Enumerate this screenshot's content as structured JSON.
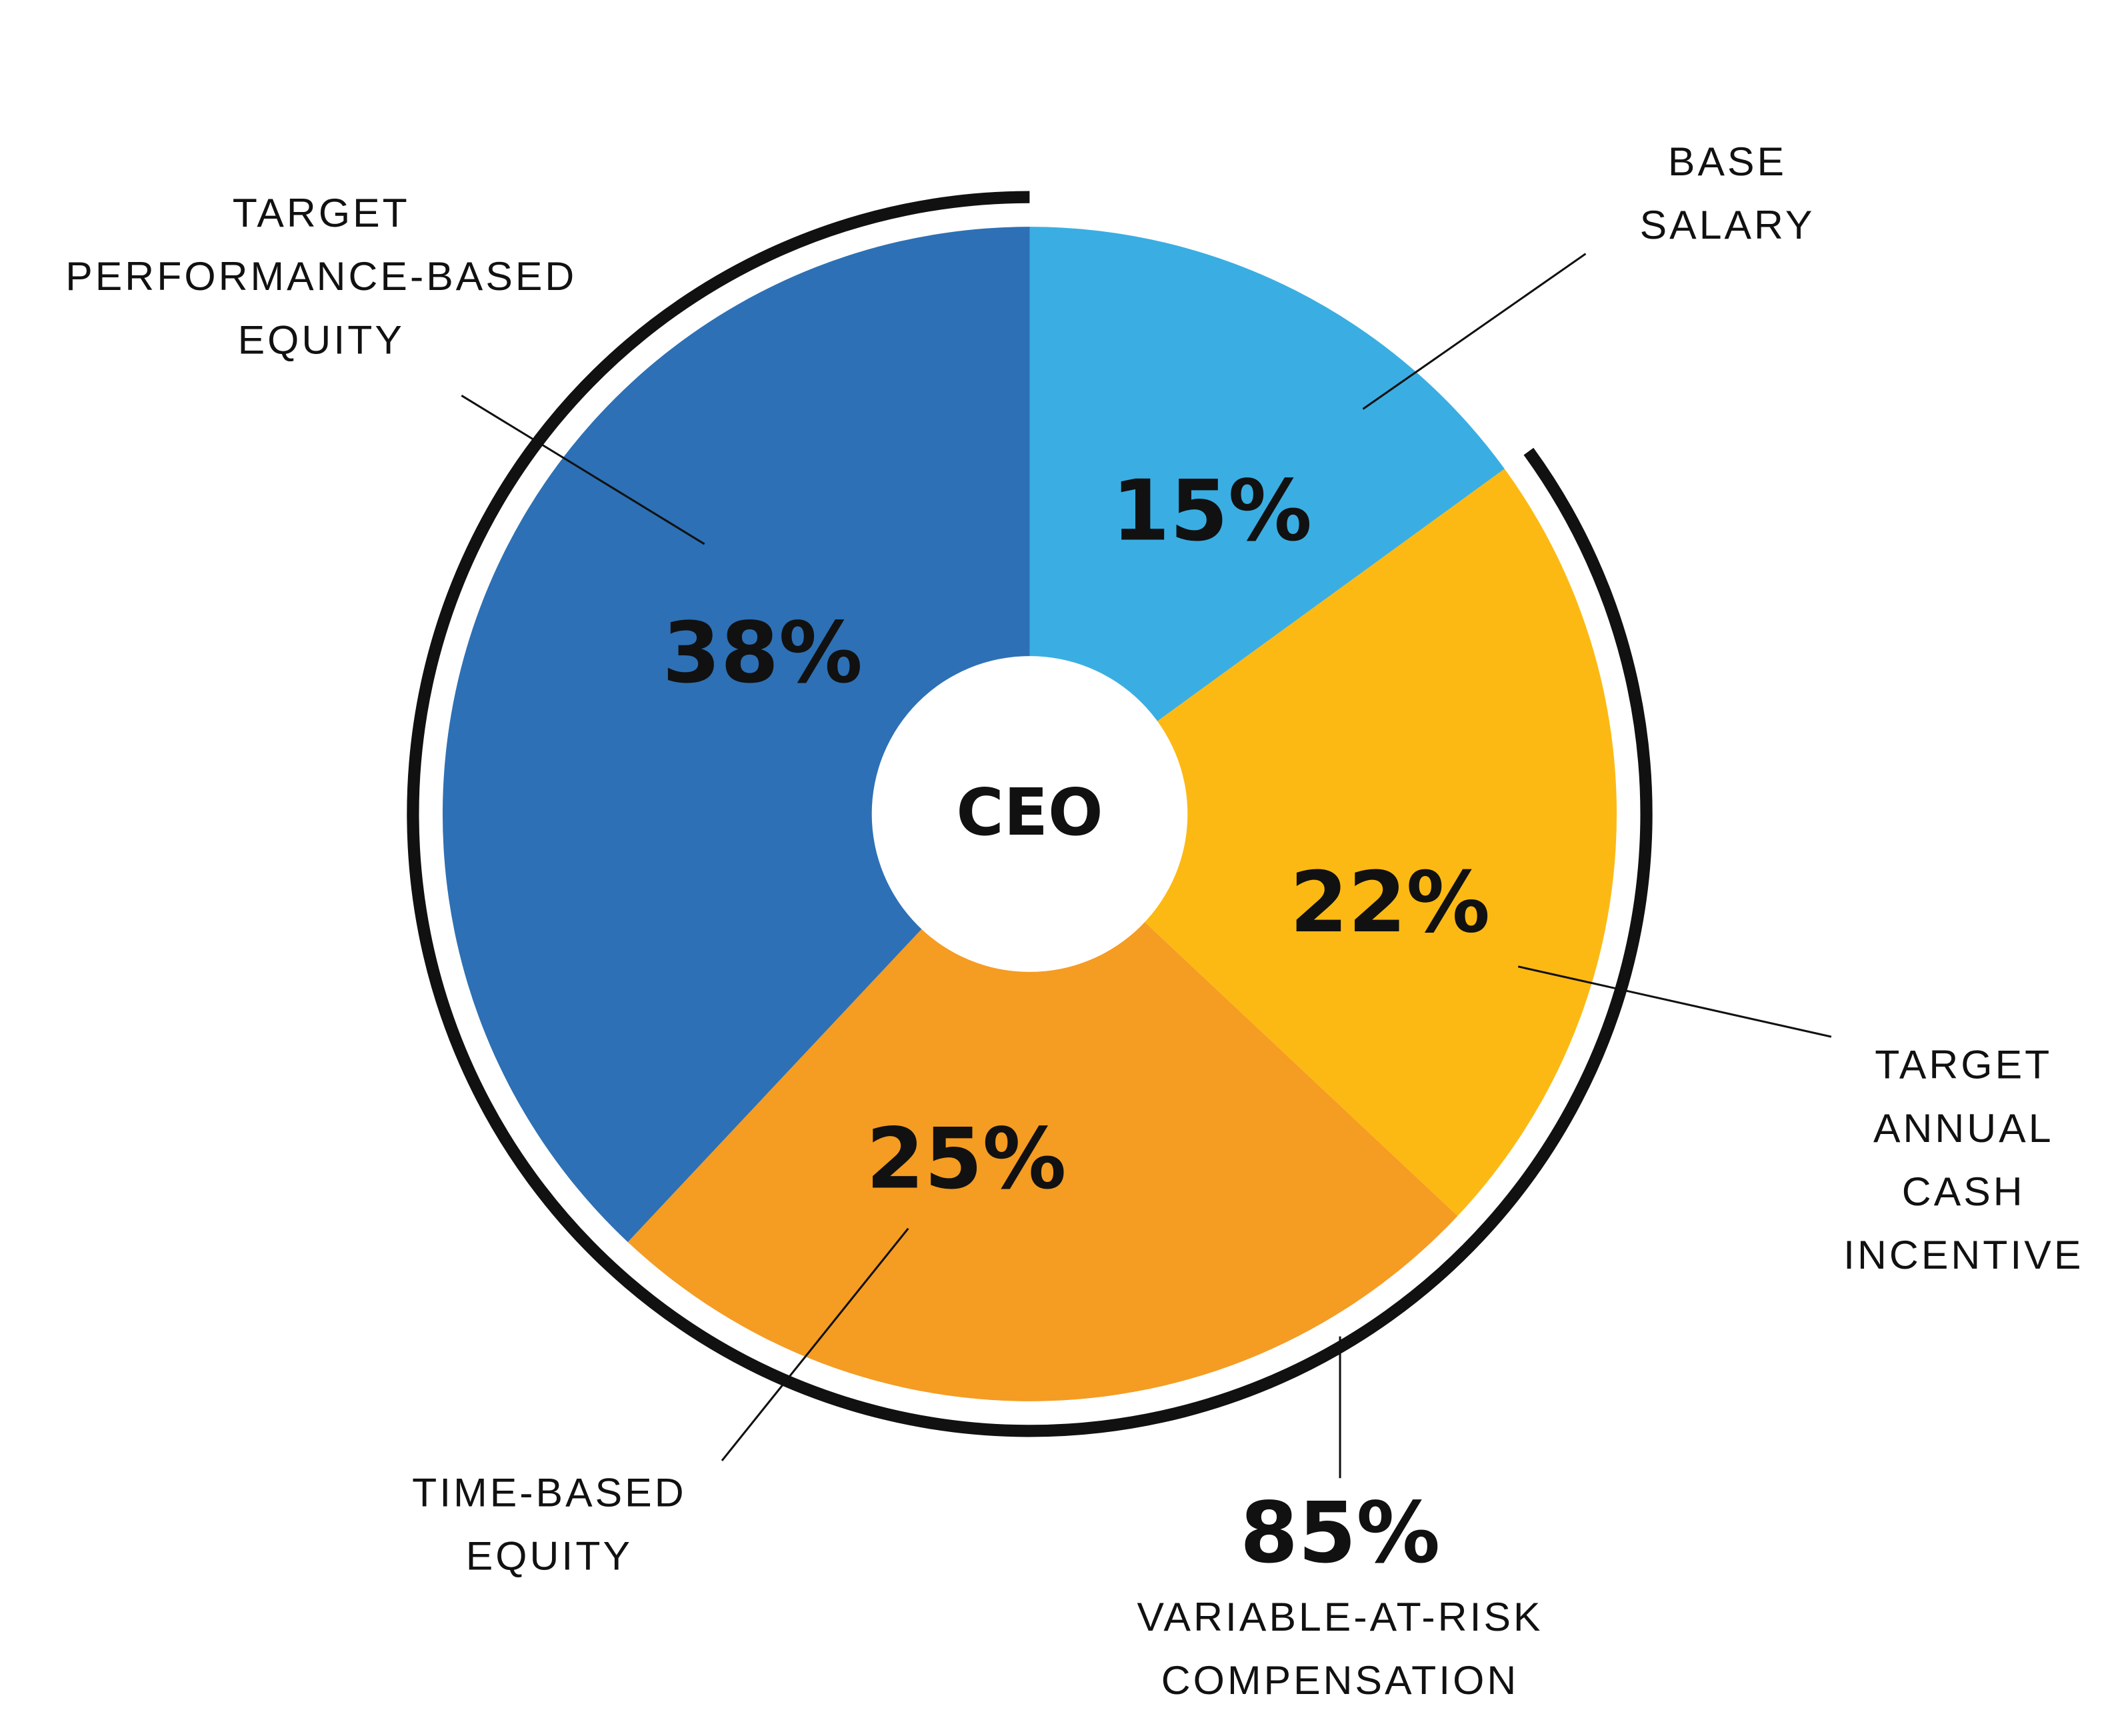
{
  "chart_data": {
    "type": "pie",
    "center_label": "CEO",
    "categories": [
      "BASE SALARY",
      "TARGET ANNUAL CASH INCENTIVE",
      "TIME-BASED EQUITY",
      "TARGET PERFORMANCE-BASED EQUITY"
    ],
    "values": [
      15,
      22,
      25,
      38
    ],
    "value_labels": [
      "15%",
      "22%",
      "25%",
      "38%"
    ],
    "colors": [
      "#3aaee2",
      "#fdb913",
      "#f59c22",
      "#2d70b5"
    ],
    "summary": {
      "value": 85,
      "value_label": "85%",
      "label": "VARIABLE-AT-RISK COMPENSATION"
    }
  }
}
